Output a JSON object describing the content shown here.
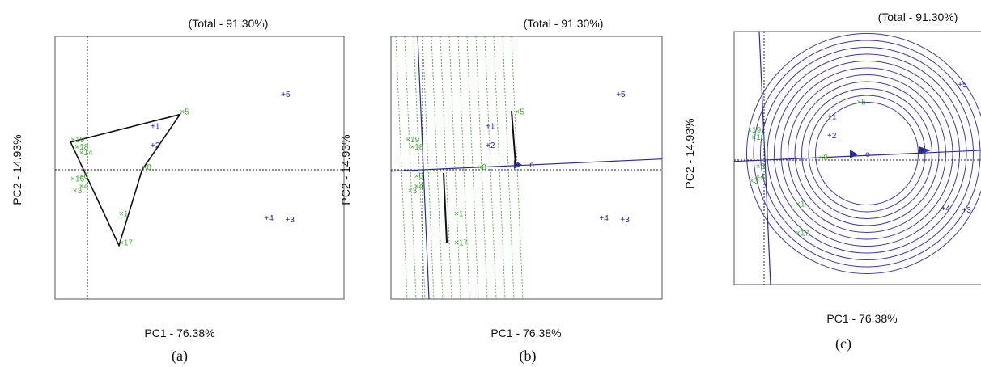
{
  "colors": {
    "entry": "#1f1f9a",
    "tester": "#44aa33",
    "frame": "#555555",
    "poly": "#111111",
    "axis_line": "#2a2aa0",
    "ring": "#3a3aa8"
  },
  "chart_data": [
    {
      "type": "scatter",
      "panel": "(a)",
      "title": "(Total - 91.30%)",
      "xlabel": "PC1 - 76.38%",
      "ylabel": "PC2 - 14.93%",
      "grid": false,
      "legend": "none",
      "xlim": [
        -1.0,
        6.0
      ],
      "ylim": [
        -4.0,
        4.0
      ],
      "entries": [
        {
          "label": "+1",
          "x": 1.5,
          "y": 1.4
        },
        {
          "label": "+2",
          "x": 1.5,
          "y": 0.75
        },
        {
          "label": "+3",
          "x": 4.7,
          "y": -1.8
        },
        {
          "label": "+4",
          "x": 4.2,
          "y": -1.75
        },
        {
          "label": "+5",
          "x": 4.6,
          "y": 2.5
        }
      ],
      "testers": [
        {
          "label": "×5",
          "x": 2.2,
          "y": 1.9
        },
        {
          "label": "×8",
          "x": 1.3,
          "y": 0.0
        },
        {
          "label": "×1",
          "x": 0.75,
          "y": -1.6
        },
        {
          "label": "×17",
          "x": 0.75,
          "y": -2.6
        },
        {
          "label": "×19",
          "x": -0.4,
          "y": 0.95
        },
        {
          "label": "×18",
          "x": -0.3,
          "y": 0.7
        },
        {
          "label": "×14",
          "x": -0.2,
          "y": 0.5
        },
        {
          "label": "×6",
          "x": -0.2,
          "y": -0.3
        },
        {
          "label": "×16",
          "x": -0.4,
          "y": -0.4
        },
        {
          "label": "×4",
          "x": -0.2,
          "y": -0.65
        },
        {
          "label": "×3",
          "x": -0.35,
          "y": -0.8
        }
      ],
      "polygon_vertices": [
        "×5",
        "8",
        "×17",
        "×19"
      ]
    },
    {
      "type": "scatter",
      "panel": "(b)",
      "title": "(Total - 91.30%)",
      "xlabel": "PC1 - 76.38%",
      "ylabel": "PC2 - 14.93%",
      "grid": false,
      "legend": "none",
      "xlim": [
        -1.0,
        6.0
      ],
      "ylim": [
        -4.0,
        4.0
      ],
      "entries": [
        {
          "label": "+1",
          "x": 1.5,
          "y": 1.4
        },
        {
          "label": "+2",
          "x": 1.5,
          "y": 0.75
        },
        {
          "label": "+3",
          "x": 4.7,
          "y": -1.8
        },
        {
          "label": "+4",
          "x": 4.2,
          "y": -1.75
        },
        {
          "label": "+5",
          "x": 4.6,
          "y": 2.5
        }
      ],
      "testers": [
        {
          "label": "×5",
          "x": 2.2,
          "y": 1.9
        },
        {
          "label": "×8",
          "x": 1.3,
          "y": 0.0
        },
        {
          "label": "×1",
          "x": 0.75,
          "y": -1.6
        },
        {
          "label": "×17",
          "x": 0.75,
          "y": -2.6
        },
        {
          "label": "×19",
          "x": -0.4,
          "y": 0.95
        },
        {
          "label": "×18",
          "x": -0.3,
          "y": 0.7
        },
        {
          "label": "×6",
          "x": -0.2,
          "y": -0.3
        },
        {
          "label": "×4",
          "x": -0.2,
          "y": -0.65
        },
        {
          "label": "×3",
          "x": -0.35,
          "y": -0.8
        }
      ],
      "ideal_marker": "o"
    },
    {
      "type": "scatter",
      "panel": "(c)",
      "title": "(Total - 91.30%)",
      "xlabel": "PC1 - 76.38%",
      "ylabel": "PC2 - 14.93%",
      "grid": false,
      "legend": "none",
      "xlim": [
        -1.0,
        6.0
      ],
      "ylim": [
        -4.0,
        4.0
      ],
      "entries": [
        {
          "label": "+1",
          "x": 1.5,
          "y": 1.4
        },
        {
          "label": "+2",
          "x": 1.5,
          "y": 0.75
        },
        {
          "label": "+3",
          "x": 4.7,
          "y": -1.8
        },
        {
          "label": "+4",
          "x": 4.2,
          "y": -1.75
        },
        {
          "label": "+5",
          "x": 4.6,
          "y": 2.5
        }
      ],
      "testers": [
        {
          "label": "×5",
          "x": 2.2,
          "y": 1.9
        },
        {
          "label": "×8",
          "x": 1.3,
          "y": 0.0
        },
        {
          "label": "×1",
          "x": 0.75,
          "y": -1.6
        },
        {
          "label": "×17",
          "x": 0.75,
          "y": -2.6
        },
        {
          "label": "×19",
          "x": -0.4,
          "y": 0.95
        },
        {
          "label": "×18",
          "x": -0.3,
          "y": 0.7
        },
        {
          "label": "×6",
          "x": -0.2,
          "y": -0.3
        },
        {
          "label": "×4",
          "x": -0.2,
          "y": -0.65
        },
        {
          "label": "×3",
          "x": -0.35,
          "y": -0.8
        }
      ],
      "ideal_marker": "o",
      "concentric_rings": 11
    }
  ]
}
